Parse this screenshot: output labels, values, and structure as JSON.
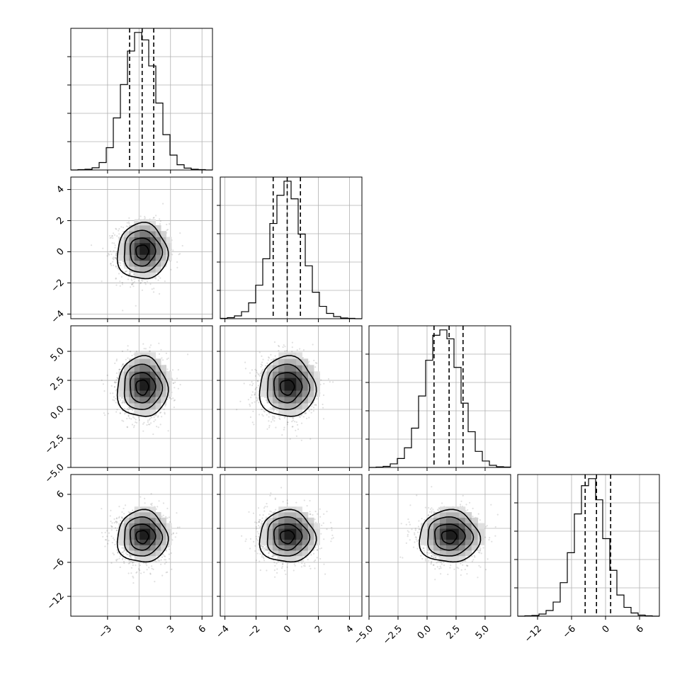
{
  "chart_data": {
    "type": "corner",
    "title": "",
    "grid": true,
    "parameters": [
      {
        "ticks": [
          -3,
          0,
          3,
          6
        ],
        "tick_labels": [
          "−3",
          "0",
          "3",
          "6"
        ],
        "range": [
          -6.5,
          7.0
        ],
        "mean": 0.3,
        "sigma": 1.2,
        "quantiles": [
          -0.9,
          0.3,
          1.4
        ]
      },
      {
        "ticks": [
          -4,
          -2,
          0,
          2,
          4
        ],
        "tick_labels": [
          "−4",
          "−2",
          "0",
          "2",
          "4"
        ],
        "range": [
          -4.3,
          4.8
        ],
        "mean": 0.0,
        "sigma": 0.9,
        "quantiles": [
          -0.9,
          0.0,
          0.85
        ]
      },
      {
        "ticks": [
          -5.0,
          -2.5,
          0.0,
          2.5,
          5.0
        ],
        "tick_labels": [
          "−5.0",
          "−2.5",
          "0.0",
          "2.5",
          "5.0"
        ],
        "range": [
          -5.0,
          7.2
        ],
        "mean": 1.9,
        "sigma": 1.3,
        "quantiles": [
          0.6,
          1.9,
          3.1
        ]
      },
      {
        "ticks": [
          -12,
          -6,
          0,
          6
        ],
        "tick_labels": [
          "−12",
          "−6",
          "0",
          "6"
        ],
        "range": [
          -15.5,
          9.5
        ],
        "mean": -1.5,
        "sigma": 2.3,
        "quantiles": [
          -3.6,
          -1.6,
          0.9
        ]
      }
    ],
    "histograms": [
      {
        "param": 0,
        "bin_edges": [
          -6.5,
          -5.825,
          -5.15,
          -4.475,
          -3.8,
          -3.125,
          -2.45,
          -1.775,
          -1.1,
          -0.425,
          0.25,
          0.925,
          1.6,
          2.275,
          2.95,
          3.625,
          4.3,
          4.975,
          5.65,
          6.325,
          7.0
        ],
        "counts": [
          0,
          1,
          2,
          6,
          20,
          60,
          140,
          230,
          320,
          370,
          350,
          280,
          180,
          95,
          40,
          14,
          5,
          2,
          1,
          0
        ]
      },
      {
        "param": 1,
        "bin_edges": [
          -4.3,
          -3.845,
          -3.39,
          -2.935,
          -2.48,
          -2.025,
          -1.57,
          -1.115,
          -0.66,
          -0.205,
          0.25,
          0.705,
          1.16,
          1.615,
          2.07,
          2.525,
          2.98,
          3.435,
          3.89,
          4.345,
          4.8
        ],
        "counts": [
          1,
          3,
          8,
          20,
          45,
          95,
          170,
          270,
          350,
          390,
          340,
          240,
          150,
          75,
          35,
          15,
          6,
          2,
          1,
          0
        ]
      },
      {
        "param": 2,
        "bin_edges": [
          -5.0,
          -4.39,
          -3.78,
          -3.17,
          -2.56,
          -1.95,
          -1.34,
          -0.73,
          -0.12,
          0.49,
          1.1,
          1.71,
          2.32,
          2.93,
          3.54,
          4.15,
          4.76,
          5.37,
          5.98,
          6.59,
          7.2
        ],
        "counts": [
          0,
          1,
          3,
          10,
          25,
          55,
          110,
          200,
          300,
          370,
          385,
          360,
          280,
          180,
          100,
          45,
          18,
          6,
          2,
          1
        ]
      },
      {
        "param": 3,
        "bin_edges": [
          -15.5,
          -14.25,
          -13.0,
          -11.75,
          -10.5,
          -9.25,
          -8.0,
          -6.75,
          -5.5,
          -4.25,
          -3.0,
          -1.75,
          -0.5,
          0.75,
          2.0,
          3.25,
          4.5,
          5.75,
          7.0,
          8.25,
          9.5
        ],
        "counts": [
          0,
          1,
          2,
          6,
          16,
          40,
          95,
          180,
          290,
          370,
          390,
          330,
          220,
          130,
          60,
          25,
          9,
          3,
          1,
          0
        ]
      }
    ],
    "pairs": [
      {
        "x_param": 0,
        "y_param": 1,
        "contour_levels_sigma": [
          0.5,
          1.0,
          1.5,
          2.0
        ]
      },
      {
        "x_param": 0,
        "y_param": 2,
        "contour_levels_sigma": [
          0.5,
          1.0,
          1.5,
          2.0
        ]
      },
      {
        "x_param": 1,
        "y_param": 2,
        "contour_levels_sigma": [
          0.5,
          1.0,
          1.5,
          2.0
        ]
      },
      {
        "x_param": 0,
        "y_param": 3,
        "contour_levels_sigma": [
          0.5,
          1.0,
          1.5,
          2.0
        ]
      },
      {
        "x_param": 1,
        "y_param": 3,
        "contour_levels_sigma": [
          0.5,
          1.0,
          1.5,
          2.0
        ]
      },
      {
        "x_param": 2,
        "y_param": 3,
        "contour_levels_sigma": [
          0.5,
          1.0,
          1.5,
          2.0
        ]
      }
    ]
  }
}
